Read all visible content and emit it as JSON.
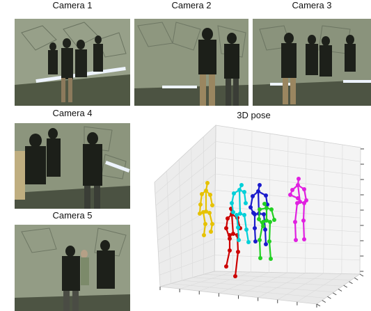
{
  "cameras": [
    {
      "label": "Camera 1"
    },
    {
      "label": "Camera 2"
    },
    {
      "label": "Camera 3"
    },
    {
      "label": "Camera 4"
    },
    {
      "label": "Camera 5"
    }
  ],
  "pose": {
    "title": "3D pose",
    "skeleton_colors": [
      "#e6c200",
      "#cc0000",
      "#00d0d8",
      "#1a1acc",
      "#22d022",
      "#e020e0"
    ]
  },
  "colors": {
    "photo_bg": "#5b6450",
    "wall": "#8e977f",
    "floor": "#4a5140",
    "light_strip": "#eef4ff"
  }
}
